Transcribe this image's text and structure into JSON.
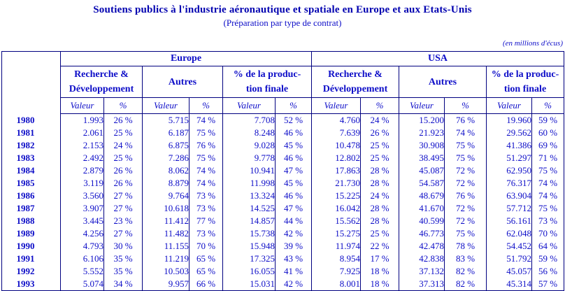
{
  "title": "Soutiens publics à l'industrie aéronautique et spatiale en Europe et aux Etats-Unis",
  "subtitle": "(Préparation par type de contrat)",
  "unit_note": "(en millions d'écus)",
  "colors": {
    "text": "#0D0DC8",
    "title": "#0000B0",
    "border": "#000080",
    "background": "#ffffff"
  },
  "table": {
    "regions": [
      "Europe",
      "USA"
    ],
    "groups": [
      {
        "line1": "Recherche &",
        "line2": "Développement"
      },
      {
        "line1": "Autres",
        "line2": ""
      },
      {
        "line1": "% de la produc-",
        "line2": "tion finale"
      }
    ],
    "sub_headers": [
      "Valeur",
      "%"
    ],
    "rows": [
      {
        "year": "1980",
        "values": [
          "1.993",
          "26 %",
          "5.715",
          "74 %",
          "7.708",
          "52 %",
          "4.760",
          "24 %",
          "15.200",
          "76 %",
          "19.960",
          "59 %"
        ]
      },
      {
        "year": "1981",
        "values": [
          "2.061",
          "25 %",
          "6.187",
          "75 %",
          "8.248",
          "46 %",
          "7.639",
          "26 %",
          "21.923",
          "74 %",
          "29.562",
          "60 %"
        ]
      },
      {
        "year": "1982",
        "values": [
          "2.153",
          "24 %",
          "6.875",
          "76 %",
          "9.028",
          "45 %",
          "10.478",
          "25 %",
          "30.908",
          "75 %",
          "41.386",
          "69 %"
        ]
      },
      {
        "year": "1983",
        "values": [
          "2.492",
          "25 %",
          "7.286",
          "75 %",
          "9.778",
          "46 %",
          "12.802",
          "25 %",
          "38.495",
          "75 %",
          "51.297",
          "71 %"
        ]
      },
      {
        "year": "1984",
        "values": [
          "2.879",
          "26 %",
          "8.062",
          "74 %",
          "10.941",
          "47 %",
          "17.863",
          "28 %",
          "45.087",
          "72 %",
          "62.950",
          "75 %"
        ]
      },
      {
        "year": "1985",
        "values": [
          "3.119",
          "26 %",
          "8.879",
          "74 %",
          "11.998",
          "45 %",
          "21.730",
          "28 %",
          "54.587",
          "72 %",
          "76.317",
          "74 %"
        ]
      },
      {
        "year": "1986",
        "values": [
          "3.560",
          "27 %",
          "9.764",
          "73 %",
          "13.324",
          "46 %",
          "15.225",
          "24 %",
          "48.679",
          "76 %",
          "63.904",
          "74 %"
        ]
      },
      {
        "year": "1987",
        "values": [
          "3.907",
          "27 %",
          "10.618",
          "73 %",
          "14.525",
          "47 %",
          "16.042",
          "28 %",
          "41.670",
          "72 %",
          "57.712",
          "75 %"
        ]
      },
      {
        "year": "1988",
        "values": [
          "3.445",
          "23 %",
          "11.412",
          "77 %",
          "14.857",
          "44 %",
          "15.562",
          "28 %",
          "40.599",
          "72 %",
          "56.161",
          "73 %"
        ]
      },
      {
        "year": "1989",
        "values": [
          "4.256",
          "27 %",
          "11.482",
          "73 %",
          "15.738",
          "42 %",
          "15.275",
          "25 %",
          "46.773",
          "75 %",
          "62.048",
          "70 %"
        ]
      },
      {
        "year": "1990",
        "values": [
          "4.793",
          "30 %",
          "11.155",
          "70 %",
          "15.948",
          "39 %",
          "11.974",
          "22 %",
          "42.478",
          "78 %",
          "54.452",
          "64 %"
        ]
      },
      {
        "year": "1991",
        "values": [
          "6.106",
          "35 %",
          "11.219",
          "65 %",
          "17.325",
          "43 %",
          "8.954",
          "17 %",
          "42.838",
          "83 %",
          "51.792",
          "59 %"
        ]
      },
      {
        "year": "1992",
        "values": [
          "5.552",
          "35 %",
          "10.503",
          "65 %",
          "16.055",
          "41 %",
          "7.925",
          "18 %",
          "37.132",
          "82 %",
          "45.057",
          "56 %"
        ]
      },
      {
        "year": "1993",
        "values": [
          "5.074",
          "34 %",
          "9.957",
          "66 %",
          "15.031",
          "42 %",
          "8.001",
          "18 %",
          "37.313",
          "82 %",
          "45.314",
          "57 %"
        ]
      }
    ]
  }
}
